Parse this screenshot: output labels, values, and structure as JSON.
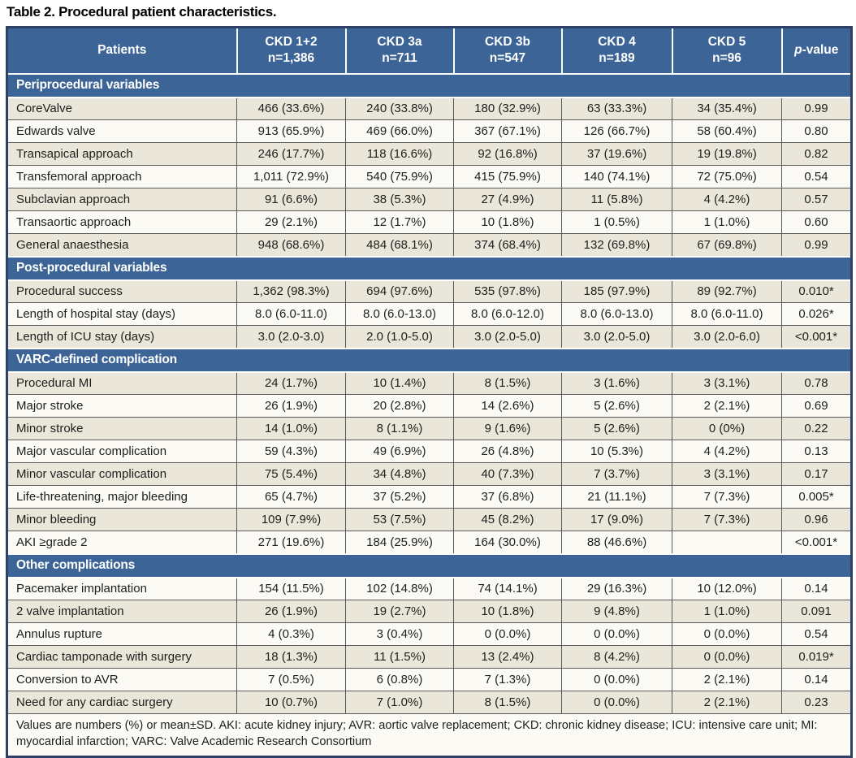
{
  "title": "Table 2. Procedural patient characteristics.",
  "columns": {
    "patients_label": "Patients",
    "groups": [
      {
        "label": "CKD 1+2",
        "n": "n=1,386"
      },
      {
        "label": "CKD 3a",
        "n": "n=711"
      },
      {
        "label": "CKD 3b",
        "n": "n=547"
      },
      {
        "label": "CKD 4",
        "n": "n=189"
      },
      {
        "label": "CKD 5",
        "n": "n=96"
      }
    ],
    "pvalue": {
      "italic": "p",
      "rest": "-value"
    }
  },
  "sections": [
    {
      "label": "Periprocedural variables",
      "rows": [
        {
          "label": "CoreValve",
          "values": [
            "466 (33.6%)",
            "240 (33.8%)",
            "180 (32.9%)",
            "63 (33.3%)",
            "34 (35.4%)",
            "0.99"
          ]
        },
        {
          "label": "Edwards valve",
          "values": [
            "913 (65.9%)",
            "469 (66.0%)",
            "367 (67.1%)",
            "126 (66.7%)",
            "58 (60.4%)",
            "0.80"
          ]
        },
        {
          "label": "Transapical approach",
          "values": [
            "246 (17.7%)",
            "118 (16.6%)",
            "92 (16.8%)",
            "37 (19.6%)",
            "19 (19.8%)",
            "0.82"
          ]
        },
        {
          "label": "Transfemoral approach",
          "values": [
            "1,011 (72.9%)",
            "540 (75.9%)",
            "415 (75.9%)",
            "140 (74.1%)",
            "72 (75.0%)",
            "0.54"
          ]
        },
        {
          "label": "Subclavian approach",
          "values": [
            "91 (6.6%)",
            "38 (5.3%)",
            "27 (4.9%)",
            "11 (5.8%)",
            "4 (4.2%)",
            "0.57"
          ]
        },
        {
          "label": "Transaortic approach",
          "values": [
            "29 (2.1%)",
            "12 (1.7%)",
            "10 (1.8%)",
            "1 (0.5%)",
            "1 (1.0%)",
            "0.60"
          ]
        },
        {
          "label": "General anaesthesia",
          "values": [
            "948 (68.6%)",
            "484 (68.1%)",
            "374 (68.4%)",
            "132 (69.8%)",
            "67 (69.8%)",
            "0.99"
          ]
        }
      ]
    },
    {
      "label": "Post-procedural variables",
      "rows": [
        {
          "label": "Procedural success",
          "values": [
            "1,362 (98.3%)",
            "694 (97.6%)",
            "535 (97.8%)",
            "185 (97.9%)",
            "89 (92.7%)",
            "0.010*"
          ]
        },
        {
          "label": "Length of hospital stay (days)",
          "values": [
            "8.0 (6.0-11.0)",
            "8.0 (6.0-13.0)",
            "8.0 (6.0-12.0)",
            "8.0 (6.0-13.0)",
            "8.0 (6.0-11.0)",
            "0.026*"
          ]
        },
        {
          "label": "Length of ICU stay (days)",
          "values": [
            "3.0 (2.0-3.0)",
            "2.0 (1.0-5.0)",
            "3.0 (2.0-5.0)",
            "3.0 (2.0-5.0)",
            "3.0 (2.0-6.0)",
            "<0.001*"
          ]
        }
      ]
    },
    {
      "label": "VARC-defined complication",
      "rows": [
        {
          "label": "Procedural MI",
          "values": [
            "24 (1.7%)",
            "10 (1.4%)",
            "8 (1.5%)",
            "3 (1.6%)",
            "3 (3.1%)",
            "0.78"
          ]
        },
        {
          "label": "Major stroke",
          "values": [
            "26 (1.9%)",
            "20 (2.8%)",
            "14 (2.6%)",
            "5 (2.6%)",
            "2 (2.1%)",
            "0.69"
          ]
        },
        {
          "label": "Minor stroke",
          "values": [
            "14 (1.0%)",
            "8 (1.1%)",
            "9 (1.6%)",
            "5 (2.6%)",
            "0 (0%)",
            "0.22"
          ]
        },
        {
          "label": "Major vascular complication",
          "values": [
            "59 (4.3%)",
            "49 (6.9%)",
            "26 (4.8%)",
            "10 (5.3%)",
            "4 (4.2%)",
            "0.13"
          ]
        },
        {
          "label": "Minor vascular complication",
          "values": [
            "75 (5.4%)",
            "34 (4.8%)",
            "40 (7.3%)",
            "7 (3.7%)",
            "3 (3.1%)",
            "0.17"
          ]
        },
        {
          "label": "Life-threatening, major bleeding",
          "values": [
            "65 (4.7%)",
            "37 (5.2%)",
            "37 (6.8%)",
            "21 (11.1%)",
            "7 (7.3%)",
            "0.005*"
          ]
        },
        {
          "label": "Minor bleeding",
          "values": [
            "109 (7.9%)",
            "53 (7.5%)",
            "45 (8.2%)",
            "17 (9.0%)",
            "7 (7.3%)",
            "0.96"
          ]
        },
        {
          "label": "AKI ≥grade 2",
          "values": [
            "271 (19.6%)",
            "184 (25.9%)",
            "164 (30.0%)",
            "88 (46.6%)",
            "",
            "<0.001*"
          ]
        }
      ]
    },
    {
      "label": "Other complications",
      "rows": [
        {
          "label": "Pacemaker implantation",
          "values": [
            "154 (11.5%)",
            "102 (14.8%)",
            "74 (14.1%)",
            "29 (16.3%)",
            "10 (12.0%)",
            "0.14"
          ]
        },
        {
          "label": "2 valve implantation",
          "values": [
            "26 (1.9%)",
            "19 (2.7%)",
            "10 (1.8%)",
            "9 (4.8%)",
            "1 (1.0%)",
            "0.091"
          ]
        },
        {
          "label": "Annulus rupture",
          "values": [
            "4 (0.3%)",
            "3 (0.4%)",
            "0 (0.0%)",
            "0 (0.0%)",
            "0 (0.0%)",
            "0.54"
          ]
        },
        {
          "label": "Cardiac tamponade with surgery",
          "values": [
            "18 (1.3%)",
            "11 (1.5%)",
            "13 (2.4%)",
            "8 (4.2%)",
            "0 (0.0%)",
            "0.019*"
          ]
        },
        {
          "label": "Conversion to AVR",
          "values": [
            "7 (0.5%)",
            "6 (0.8%)",
            "7 (1.3%)",
            "0 (0.0%)",
            "2 (2.1%)",
            "0.14"
          ]
        },
        {
          "label": "Need for any cardiac surgery",
          "values": [
            "10 (0.7%)",
            "7 (1.0%)",
            "8 (1.5%)",
            "0 (0.0%)",
            "2 (2.1%)",
            "0.23"
          ]
        }
      ]
    }
  ],
  "footnote": "Values are numbers (%) or mean±SD. AKI: acute kidney injury; AVR: aortic valve replacement; CKD: chronic kidney disease; ICU: intensive care unit; MI: myocardial infarction; VARC: Valve Academic Research Consortium",
  "colors": {
    "header_blue": "#3C6496",
    "row_beige": "#EAE6D9",
    "row_white": "#FBFAF5",
    "grid_line": "#58595B",
    "outer_border": "#2E4164"
  }
}
